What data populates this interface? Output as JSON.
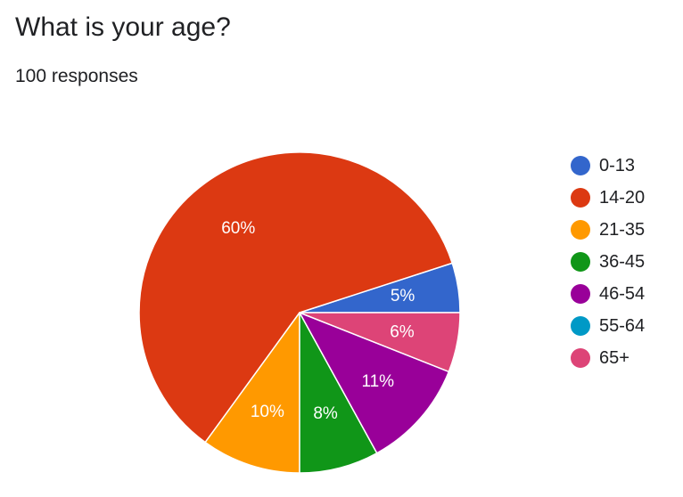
{
  "header": {
    "title": "What is your age?",
    "subtitle": "100 responses"
  },
  "chart_data": {
    "type": "pie",
    "title": "What is your age?",
    "subtitle": "100 responses",
    "legend_position": "right",
    "start": "3 o'clock, counterclockwise",
    "slices": [
      {
        "label": "0-13",
        "value": 5,
        "display": "5%",
        "color": "#3366cc"
      },
      {
        "label": "14-20",
        "value": 60,
        "display": "60%",
        "color": "#dc3912"
      },
      {
        "label": "21-35",
        "value": 10,
        "display": "10%",
        "color": "#ff9900"
      },
      {
        "label": "36-45",
        "value": 8,
        "display": "8%",
        "color": "#109618"
      },
      {
        "label": "46-54",
        "value": 11,
        "display": "11%",
        "color": "#990099"
      },
      {
        "label": "55-64",
        "value": 0,
        "display": "",
        "color": "#0099c6"
      },
      {
        "label": "65+",
        "value": 6,
        "display": "6%",
        "color": "#dd4477"
      }
    ]
  }
}
